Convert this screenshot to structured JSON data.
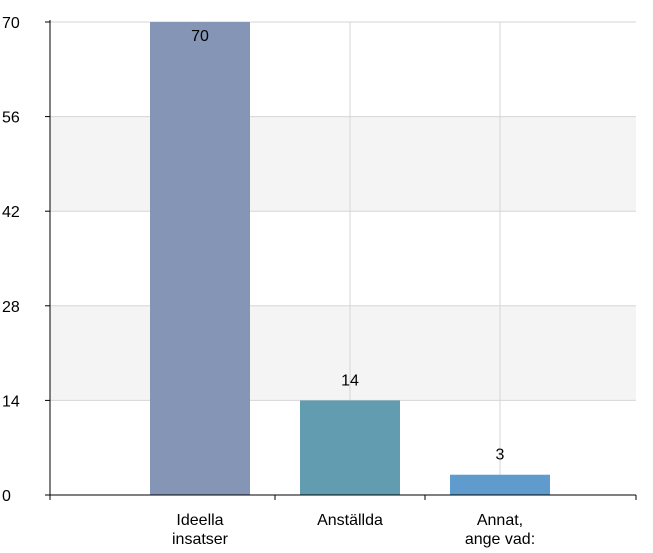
{
  "chart_data": {
    "type": "bar",
    "categories": [
      [
        "Ideella",
        "insatser"
      ],
      [
        "Anställda"
      ],
      [
        "Annat,",
        "ange vad:"
      ]
    ],
    "values": [
      70,
      14,
      3
    ],
    "ylim": [
      0,
      70
    ],
    "yticks": [
      0,
      14,
      28,
      42,
      56,
      70
    ],
    "bar_colors": [
      "#8495b5",
      "#619cb0",
      "#5f9bcd"
    ],
    "grid": true,
    "legend": "none",
    "title": "",
    "xlabel": "",
    "ylabel": ""
  }
}
